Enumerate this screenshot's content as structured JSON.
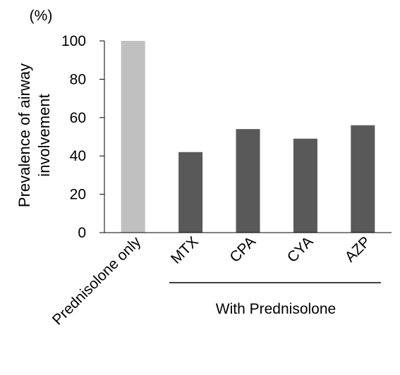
{
  "chart_data": {
    "type": "bar",
    "unit_label": "(%)",
    "ylabel_line1": "Prevalence of airway",
    "ylabel_line2": "involvement",
    "categories": [
      "Prednisolone only",
      "MTX",
      "CPA",
      "CYA",
      "AZP"
    ],
    "values": [
      100,
      42,
      54,
      49,
      56
    ],
    "ylim": [
      0,
      100
    ],
    "yticks": [
      0,
      20,
      40,
      60,
      80,
      100
    ],
    "group_label": "With Prednisolone",
    "grid": false,
    "bar_colors": [
      "#c0c0c0",
      "#595959",
      "#595959",
      "#595959",
      "#595959"
    ]
  }
}
